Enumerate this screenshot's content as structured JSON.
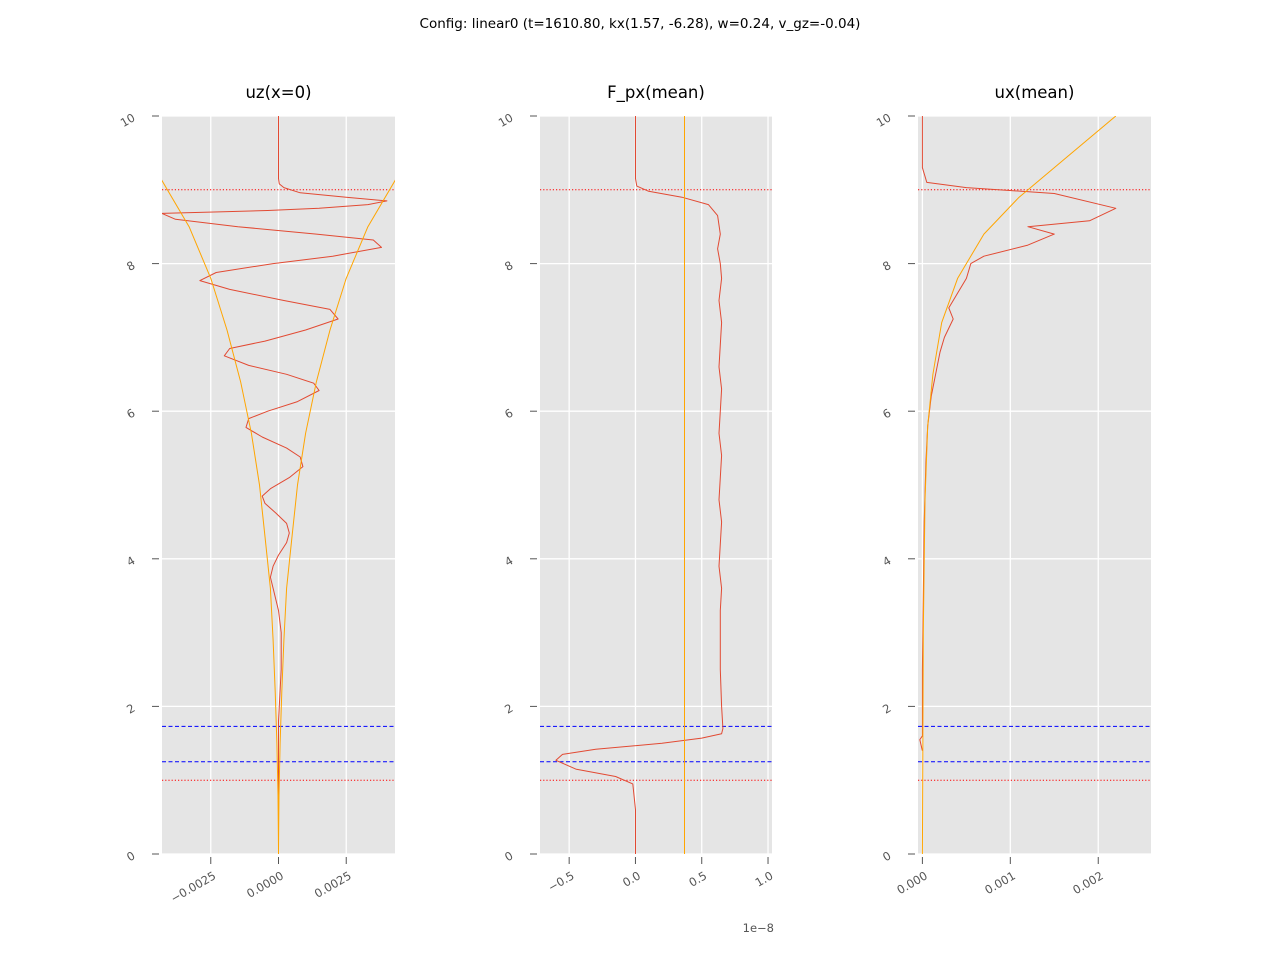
{
  "suptitle": "Config: linear0 (t=1610.80, kx(1.57, -6.28), w=0.24, v_gz=-0.04)",
  "colors": {
    "background": "#e5e5e5",
    "grid": "#ffffff",
    "data_line": "#e24a33",
    "envelope": "#ffa500",
    "red_dotted": "#ff0000",
    "blue_dashed": "#0000ff",
    "tick_text": "#555555"
  },
  "chart_data": [
    {
      "type": "line",
      "title": "uz(x=0)",
      "xlabel": "",
      "ylabel": "",
      "xlim": [
        -0.0043,
        0.0043
      ],
      "ylim": [
        0,
        10
      ],
      "grid": true,
      "xticks": [
        -0.0025,
        0.0,
        0.0025
      ],
      "xtick_labels": [
        "−0.0025",
        "0.0000",
        "0.0025"
      ],
      "yticks": [
        0,
        2,
        4,
        6,
        8,
        10
      ],
      "ytick_labels": [
        "0",
        "2",
        "4",
        "6",
        "8",
        "10"
      ],
      "hlines": [
        {
          "y": 9.0,
          "style": "dotted",
          "color": "#ff0000"
        },
        {
          "y": 1.0,
          "style": "dotted",
          "color": "#ff0000"
        },
        {
          "y": 1.73,
          "style": "dashed",
          "color": "#0000ff"
        },
        {
          "y": 1.25,
          "style": "dashed",
          "color": "#0000ff"
        }
      ],
      "series": [
        {
          "color": "#e24a33",
          "x": [
            0,
            0,
            0,
            0,
            3e-05,
            0.0002,
            0.0008,
            0.0025,
            0.004,
            0.0033,
            0.0015,
            -0.0004,
            -0.0022,
            -0.0043,
            -0.0038,
            -0.0015,
            0.0014,
            0.0035,
            0.0038,
            0.002,
            -0.0002,
            -0.0023,
            -0.0029,
            -0.0018,
            0.0002,
            0.0019,
            0.0022,
            0.001,
            -0.0005,
            -0.0018,
            -0.002,
            -0.0011,
            0.0003,
            0.0013,
            0.0015,
            0.0007,
            -0.0004,
            -0.0011,
            -0.0012,
            -0.0006,
            0.0003,
            0.0008,
            0.0009,
            0.0004,
            -0.0003,
            -0.0006,
            -0.0005,
            -0.0001,
            0.0003,
            0.0004,
            0.0003,
            0,
            -0.0002,
            -0.0003,
            -0.0002,
            0,
            0.0001,
            0.0001,
            0,
            0
          ],
          "y": [
            10,
            9.6,
            9.3,
            9.15,
            9.08,
            9.03,
            8.96,
            8.9,
            8.85,
            8.8,
            8.75,
            8.72,
            8.7,
            8.68,
            8.6,
            8.5,
            8.4,
            8.32,
            8.22,
            8.1,
            8.0,
            7.88,
            7.77,
            7.65,
            7.5,
            7.38,
            7.25,
            7.1,
            6.95,
            6.85,
            6.75,
            6.62,
            6.5,
            6.38,
            6.28,
            6.13,
            6.0,
            5.9,
            5.78,
            5.65,
            5.5,
            5.38,
            5.25,
            5.1,
            4.95,
            4.85,
            4.75,
            4.62,
            4.48,
            4.35,
            4.22,
            4.05,
            3.9,
            3.75,
            3.6,
            3.3,
            3.0,
            2.5,
            1.8,
            0.0
          ]
        },
        {
          "color": "#ffa500",
          "x": [
            -0.0045,
            -0.0033,
            -0.0025,
            -0.0019,
            -0.0014,
            -0.001,
            -0.0007,
            -0.0005,
            -0.0003,
            -0.0002,
            -0.00012,
            -6e-05,
            -2e-05,
            0
          ],
          "y": [
            9.25,
            8.5,
            7.8,
            7.1,
            6.4,
            5.7,
            5.0,
            4.3,
            3.6,
            2.9,
            2.2,
            1.5,
            0.8,
            0
          ]
        },
        {
          "color": "#ffa500",
          "x": [
            0.0045,
            0.0033,
            0.0025,
            0.0019,
            0.0014,
            0.001,
            0.0007,
            0.0005,
            0.0003,
            0.0002,
            0.00012,
            6e-05,
            2e-05,
            0
          ],
          "y": [
            9.25,
            8.5,
            7.8,
            7.1,
            6.4,
            5.7,
            5.0,
            4.3,
            3.6,
            2.9,
            2.2,
            1.5,
            0.8,
            0
          ]
        }
      ]
    },
    {
      "type": "line",
      "title": "F_px(mean)",
      "xlabel": "",
      "ylabel": "",
      "offset_label": "1e−8",
      "xlim": [
        -0.72,
        1.03
      ],
      "ylim": [
        0,
        10
      ],
      "grid": true,
      "xticks": [
        -0.5,
        0.0,
        0.5,
        1.0
      ],
      "xtick_labels": [
        "−0.5",
        "0.0",
        "0.5",
        "1.0"
      ],
      "yticks": [
        0,
        2,
        4,
        6,
        8,
        10
      ],
      "ytick_labels": [
        "0",
        "2",
        "4",
        "6",
        "8",
        "10"
      ],
      "hlines": [
        {
          "y": 9.0,
          "style": "dotted",
          "color": "#ff0000"
        },
        {
          "y": 1.0,
          "style": "dotted",
          "color": "#ff0000"
        },
        {
          "y": 1.73,
          "style": "dashed",
          "color": "#0000ff"
        },
        {
          "y": 1.25,
          "style": "dashed",
          "color": "#0000ff"
        }
      ],
      "series": [
        {
          "color": "#e24a33",
          "x": [
            0,
            0,
            0.01,
            0.1,
            0.35,
            0.55,
            0.62,
            0.64,
            0.62,
            0.64,
            0.65,
            0.63,
            0.65,
            0.64,
            0.63,
            0.65,
            0.64,
            0.63,
            0.65,
            0.64,
            0.63,
            0.65,
            0.64,
            0.63,
            0.65,
            0.64,
            0.64,
            0.64,
            0.65,
            0.66,
            0.65,
            0.5,
            0.2,
            -0.3,
            -0.55,
            -0.6,
            -0.45,
            -0.15,
            -0.02,
            0,
            0
          ],
          "y": [
            10,
            9.15,
            9.05,
            8.98,
            8.9,
            8.8,
            8.65,
            8.4,
            8.2,
            8.0,
            7.8,
            7.5,
            7.2,
            6.9,
            6.6,
            6.3,
            6.0,
            5.7,
            5.4,
            5.1,
            4.8,
            4.5,
            4.2,
            3.9,
            3.6,
            3.3,
            3.0,
            2.5,
            2.0,
            1.7,
            1.63,
            1.57,
            1.5,
            1.42,
            1.35,
            1.27,
            1.15,
            1.05,
            0.95,
            0.6,
            0
          ]
        },
        {
          "color": "#ffa500",
          "x": [
            0.37,
            0.37
          ],
          "y": [
            0,
            10
          ]
        }
      ]
    },
    {
      "type": "line",
      "title": "ux(mean)",
      "xlabel": "",
      "ylabel": "",
      "xlim": [
        -5e-05,
        0.0026
      ],
      "ylim": [
        0,
        10
      ],
      "grid": true,
      "xticks": [
        0.0,
        0.001,
        0.002
      ],
      "xtick_labels": [
        "0.000",
        "0.001",
        "0.002"
      ],
      "yticks": [
        0,
        2,
        4,
        6,
        8,
        10
      ],
      "ytick_labels": [
        "0",
        "2",
        "4",
        "6",
        "8",
        "10"
      ],
      "hlines": [
        {
          "y": 9.0,
          "style": "dotted",
          "color": "#ff0000"
        },
        {
          "y": 1.0,
          "style": "dotted",
          "color": "#ff0000"
        },
        {
          "y": 1.73,
          "style": "dashed",
          "color": "#0000ff"
        },
        {
          "y": 1.25,
          "style": "dashed",
          "color": "#0000ff"
        }
      ],
      "series": [
        {
          "color": "#e24a33",
          "x": [
            0,
            0,
            5e-05,
            0.0005,
            0.0015,
            0.0022,
            0.0019,
            0.0012,
            0.0015,
            0.0012,
            0.0007,
            0.00055,
            0.0005,
            0.0004,
            0.0003,
            0.00035,
            0.00025,
            0.0002,
            0.00015,
            0.0001,
            6e-05,
            4e-05,
            2e-05,
            1e-05,
            0,
            0,
            -3e-05,
            0
          ],
          "y": [
            10,
            9.3,
            9.1,
            9.03,
            8.95,
            8.75,
            8.58,
            8.5,
            8.4,
            8.25,
            8.1,
            8.0,
            7.8,
            7.6,
            7.4,
            7.25,
            7.0,
            6.8,
            6.5,
            6.2,
            5.8,
            5.3,
            4.5,
            3.5,
            2.5,
            1.6,
            1.55,
            1.4
          ]
        },
        {
          "color": "#ffa500",
          "x": [
            0,
            1e-05,
            3e-05,
            6e-05,
            0.00012,
            0.00022,
            0.0004,
            0.0007,
            0.0011,
            0.0016,
            0.0022
          ],
          "y": [
            0,
            3.0,
            4.8,
            5.8,
            6.5,
            7.2,
            7.8,
            8.4,
            8.9,
            9.4,
            10.0
          ]
        }
      ]
    }
  ]
}
